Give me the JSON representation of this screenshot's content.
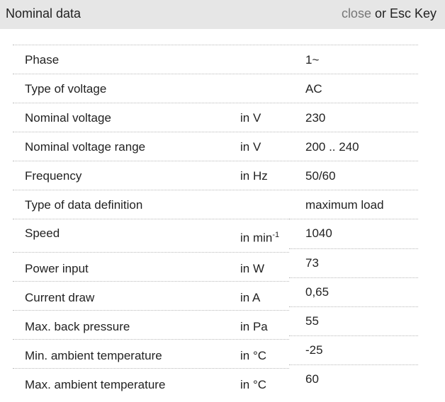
{
  "header": {
    "title": "Nominal data",
    "close_label": "close",
    "close_suffix": " or Esc Key"
  },
  "rows": [
    {
      "label": "Phase",
      "unit": "",
      "value": "1~"
    },
    {
      "label": "Type of voltage",
      "unit": "",
      "value": "AC"
    },
    {
      "label": "Nominal voltage",
      "unit": "in V",
      "value": "230"
    },
    {
      "label": "Nominal voltage range",
      "unit": "in V",
      "value": "200 .. 240"
    },
    {
      "label": "Frequency",
      "unit": "in Hz",
      "value": "50/60"
    },
    {
      "label": "Type of data definition",
      "unit": "",
      "value": "maximum load"
    },
    {
      "label": "Speed",
      "unit": "in min",
      "unit_sup": "-1",
      "value": "1040"
    },
    {
      "label": "Power input",
      "unit": "in W",
      "value": "73"
    },
    {
      "label": "Current draw",
      "unit": "in A",
      "value": "0,65"
    },
    {
      "label": "Max. back pressure",
      "unit": "in Pa",
      "value": "55"
    },
    {
      "label": "Min. ambient temperature",
      "unit": "in °C",
      "value": "-25"
    },
    {
      "label": "Max. ambient temperature",
      "unit": "in °C",
      "value": "60"
    }
  ]
}
